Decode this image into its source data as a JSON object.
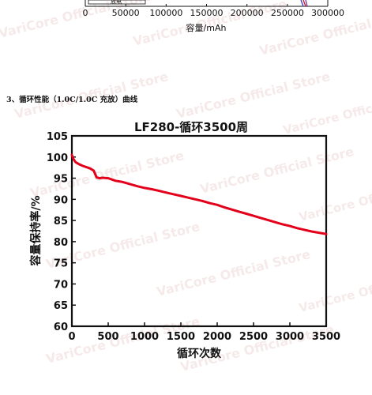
{
  "top_chart": {
    "x_ticks": [
      "0",
      "50000",
      "100000",
      "150000",
      "200000",
      "250000",
      "300000"
    ],
    "x_values": [
      0,
      50000,
      100000,
      150000,
      200000,
      250000,
      300000
    ],
    "xlabel": "容量/mAh",
    "legend_fragment": "放电",
    "line_colors": [
      "#2b3fbf",
      "#c8102e",
      "#6b2f8f"
    ]
  },
  "section_heading": "3、循环性能（1.0C/1.0C 充放）曲线",
  "watermark_text": "VariCore Official Store",
  "chart_data": {
    "type": "line",
    "title": "LF280-循环3500周",
    "xlabel": "循环次数",
    "ylabel": "容量保持率/%",
    "xlim": [
      0,
      3500
    ],
    "ylim": [
      60,
      105
    ],
    "x_ticks": [
      0,
      500,
      1000,
      1500,
      2000,
      2500,
      3000,
      3500
    ],
    "y_ticks": [
      60,
      65,
      70,
      75,
      80,
      85,
      90,
      95,
      100,
      105
    ],
    "grid": false,
    "color": "#e3001b",
    "series": [
      {
        "x": [
          0,
          20,
          50,
          100,
          150,
          200,
          250,
          300,
          340,
          380,
          420,
          500,
          600,
          700,
          800,
          900,
          1000,
          1100,
          1200,
          1300,
          1400,
          1500,
          1600,
          1700,
          1800,
          1900,
          2000,
          2100,
          2200,
          2300,
          2400,
          2500,
          2600,
          2700,
          2800,
          2900,
          3000,
          3100,
          3200,
          3300,
          3400,
          3500
        ],
        "y": [
          100.5,
          99.6,
          98.8,
          98.3,
          97.9,
          97.6,
          97.3,
          96.8,
          95.2,
          95.0,
          95.1,
          95.0,
          94.4,
          94.1,
          93.6,
          93.1,
          92.7,
          92.4,
          92.0,
          91.6,
          91.2,
          90.8,
          90.4,
          90.0,
          89.6,
          89.1,
          88.7,
          88.1,
          87.6,
          87.1,
          86.6,
          86.1,
          85.6,
          85.1,
          84.6,
          84.1,
          83.7,
          83.2,
          82.8,
          82.4,
          82.1,
          81.8
        ]
      }
    ]
  }
}
